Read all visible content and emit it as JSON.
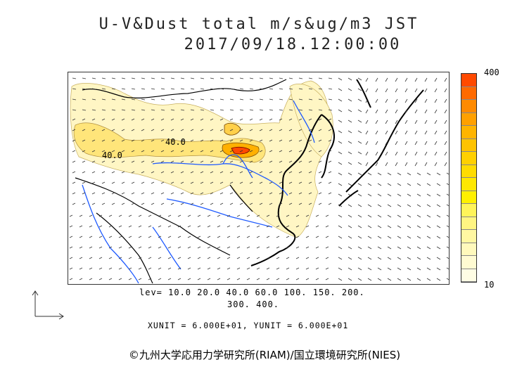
{
  "title": {
    "line1": "U-V&Dust total m/s&ug/m3 JST",
    "line2": "2017/09/18.12:00:00"
  },
  "contour_labels": [
    "40.0",
    "40.0"
  ],
  "legend": {
    "max_label": "400",
    "min_label": "10",
    "colors": [
      "#ff4a00",
      "#ff6a00",
      "#ff8a00",
      "#ffa000",
      "#ffb400",
      "#ffc300",
      "#ffd000",
      "#ffdc00",
      "#ffe800",
      "#fff000",
      "#fff45a",
      "#fff582",
      "#fff7a2",
      "#fff9bc",
      "#fffbd2",
      "#fffde4"
    ]
  },
  "levels": {
    "line1": "lev= 10.0 20.0 40.0 60.0 100. 150. 200.",
    "line2": "300. 400."
  },
  "units": {
    "text": "XUNIT = 6.000E+01, YUNIT = 6.000E+01"
  },
  "copyright": {
    "text": "©九州大学応用力学研究所(RIAM)/国立環境研究所(NIES)"
  },
  "colors": {
    "coast": "#000000",
    "river": "#1e5aff",
    "dust_light": "#fff6c4",
    "dust_mid": "#ffe57a",
    "dust_high": "#ff9a00",
    "dust_peak": "#ff4a00"
  }
}
